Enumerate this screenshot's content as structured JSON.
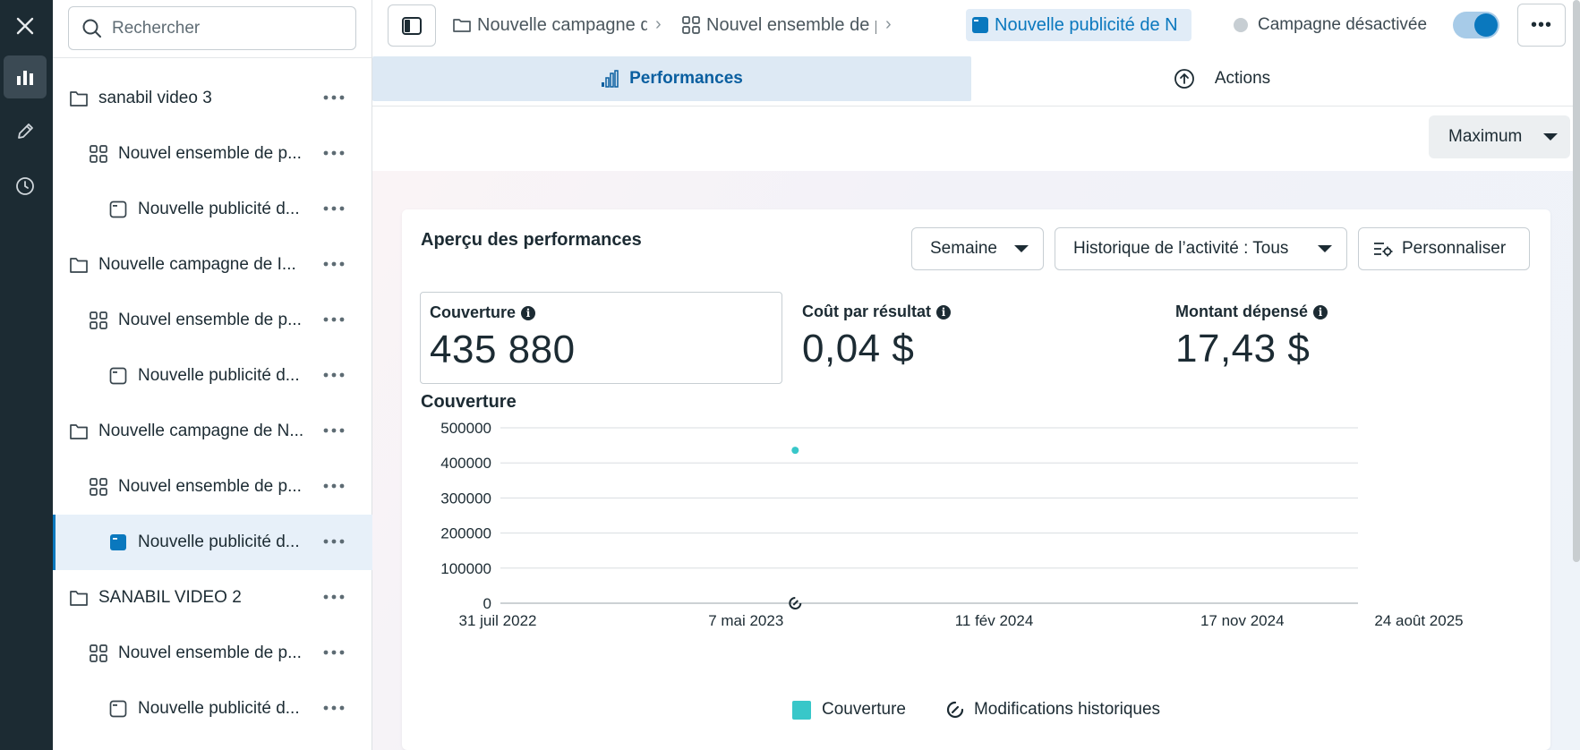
{
  "rail": {
    "items": [
      {
        "icon": "close-icon"
      },
      {
        "icon": "bar-chart-icon",
        "active": true
      },
      {
        "icon": "pencil-icon"
      },
      {
        "icon": "clock-icon"
      }
    ]
  },
  "tree": {
    "search_placeholder": "Rechercher",
    "items": [
      {
        "type": "campaign",
        "label": "sanabil video 3"
      },
      {
        "type": "adset",
        "label": "Nouvel ensemble de p..."
      },
      {
        "type": "ad",
        "label": "Nouvelle publicité d..."
      },
      {
        "type": "campaign",
        "label": "Nouvelle campagne de I..."
      },
      {
        "type": "adset",
        "label": "Nouvel ensemble de p..."
      },
      {
        "type": "ad",
        "label": "Nouvelle publicité d..."
      },
      {
        "type": "campaign",
        "label": "Nouvelle campagne de N..."
      },
      {
        "type": "adset",
        "label": "Nouvel ensemble de p..."
      },
      {
        "type": "ad",
        "label": "Nouvelle publicité d...",
        "selected": true
      },
      {
        "type": "campaign",
        "label": "SANABIL VIDEO 2"
      },
      {
        "type": "adset",
        "label": "Nouvel ensemble de p..."
      },
      {
        "type": "ad",
        "label": "Nouvelle publicité d..."
      }
    ]
  },
  "topbar": {
    "breadcrumbs": [
      {
        "label": "Nouvelle campagne de"
      },
      {
        "label": "Nouvel ensemble de pu"
      },
      {
        "label": "Nouvelle publicité de N"
      }
    ],
    "status": "Campagne désactivée",
    "more": "•••"
  },
  "tabs": {
    "performance": "Performances",
    "actions": "Actions"
  },
  "range": {
    "label": "Maximum"
  },
  "card": {
    "title": "Aperçu des performances",
    "period": "Semaine",
    "history_filter": "Historique de l’activité : Tous",
    "customize": "Personnaliser",
    "metrics": [
      {
        "label": "Couverture",
        "value": "435 880"
      },
      {
        "label": "Coût par résultat",
        "value": "0,04 $"
      },
      {
        "label": "Montant dépensé",
        "value": "17,43 $"
      }
    ],
    "chart_title": "Couverture"
  },
  "colors": {
    "accent": "#0a78be",
    "series": "#38c7c9",
    "rail": "#1c2b33"
  },
  "chart_data": {
    "type": "scatter",
    "title": "Couverture",
    "xlabel": "",
    "ylabel": "",
    "x_ticks": [
      "31 juil 2022",
      "7 mai 2023",
      "11 fév 2024",
      "17 nov 2024",
      "24 août 2025"
    ],
    "x_range": [
      "2022-07-31",
      "2025-08-24"
    ],
    "ylim": [
      0,
      500000
    ],
    "y_ticks": [
      "500000",
      "400000",
      "300000",
      "200000",
      "100000",
      "0"
    ],
    "grid": true,
    "series": [
      {
        "name": "Couverture",
        "points": [
          {
            "x": "2023-08-20",
            "y": 435880
          }
        ]
      }
    ],
    "history_markers": [
      {
        "x": "2023-08-20"
      }
    ],
    "legend": [
      "Couverture",
      "Modifications historiques"
    ],
    "legend_position": "bottom"
  }
}
